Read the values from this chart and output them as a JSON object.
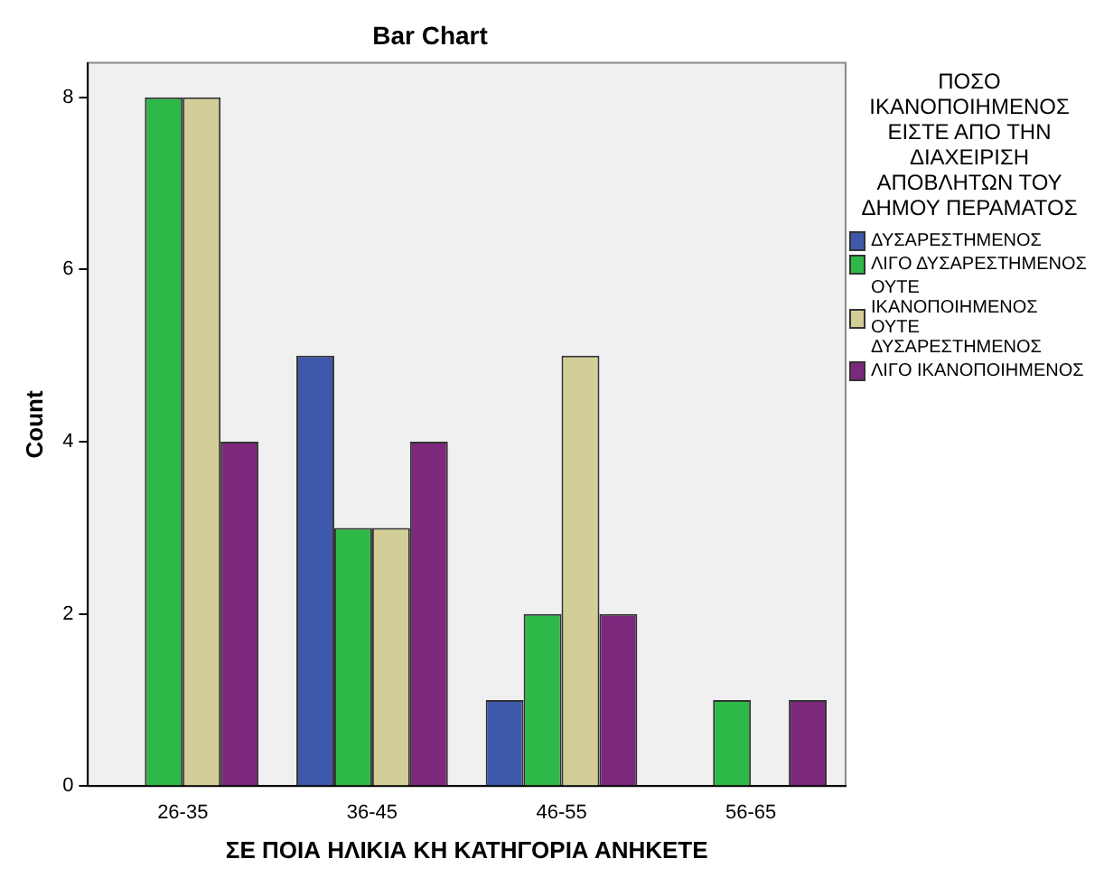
{
  "chart_data": {
    "type": "bar",
    "title": "Bar Chart",
    "xlabel": "ΣΕ ΠΟΙΑ ΗΛΙΚΙΑ ΚΗ ΚΑΤΗΓΟΡΙΑ ΑΝΗΚΕΤΕ",
    "ylabel": "Count",
    "legend_title": "ΠΟΣΟ ΙΚΑΝΟΠΟΙΗΜΕΝΟΣ ΕΙΣΤΕ ΑΠΟ ΤΗΝ ΔΙΑΧΕΙΡΙΣΗ ΑΠΟΒΛΗΤΩΝ ΤΟΥ ΔΗΜΟΥ ΠΕΡΑΜΑΤΟΣ",
    "categories": [
      "26-35",
      "36-45",
      "46-55",
      "56-65"
    ],
    "series": [
      {
        "name": "ΔΥΣΑΡΕΣΤΗΜΕΝΟΣ",
        "color": "#3e58ac",
        "values": [
          0,
          5,
          1,
          0
        ]
      },
      {
        "name": "ΛΙΓΟ ΔΥΣΑΡΕΣΤΗΜΕΝΟΣ",
        "color": "#2eb848",
        "values": [
          8,
          3,
          2,
          1
        ]
      },
      {
        "name": "ΟΥΤΕ ΙΚΑΝΟΠΟΙΗΜΕΝΟΣ ΟΥΤΕ ΔΥΣΑΡΕΣΤΗΜΕΝΟΣ",
        "color": "#d3ce97",
        "values": [
          8,
          3,
          5,
          0
        ]
      },
      {
        "name": "ΛΙΓΟ ΙΚΑΝΟΠΟΙΗΜΕΝΟΣ",
        "color": "#7b287d",
        "values": [
          4,
          4,
          2,
          1
        ]
      }
    ],
    "ylim": [
      0,
      8.4
    ],
    "yticks": [
      0,
      2,
      4,
      6,
      8
    ],
    "grid": false,
    "legend": "right"
  }
}
